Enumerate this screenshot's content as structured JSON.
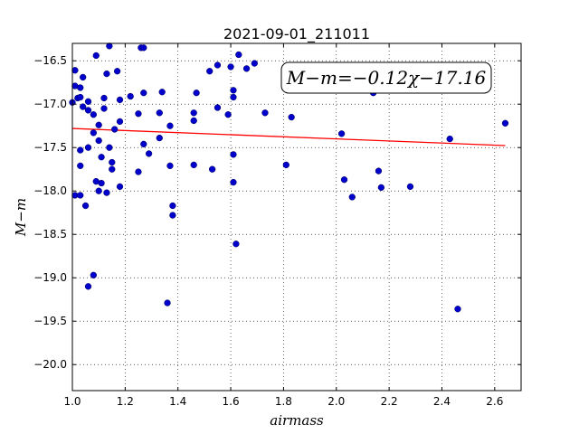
{
  "chart_data": {
    "type": "scatter",
    "title": "2021-09-01_211011",
    "xlabel": "airmass",
    "ylabel": "M−m",
    "xlim": [
      1.0,
      2.7
    ],
    "ylim": [
      -20.3,
      -16.3
    ],
    "x_ticks": [
      1.0,
      1.2,
      1.4,
      1.6,
      1.8,
      2.0,
      2.2,
      2.4,
      2.6
    ],
    "x_tick_labels": [
      "1.0",
      "1.2",
      "1.4",
      "1.6",
      "1.8",
      "2.0",
      "2.2",
      "2.4",
      "2.6"
    ],
    "y_ticks": [
      -16.5,
      -17.0,
      -17.5,
      -18.0,
      -18.5,
      -19.0,
      -19.5,
      -20.0
    ],
    "y_tick_labels": [
      "−16.5",
      "−17.0",
      "−17.5",
      "−18.0",
      "−18.5",
      "−19.0",
      "−19.5",
      "−20.0"
    ],
    "grid": true,
    "annotation": "M−m=−0.12χ−17.16",
    "fit_line": {
      "slope": -0.12,
      "intercept": -17.16,
      "x_range": [
        1.0,
        2.64
      ],
      "color": "#ff0000"
    },
    "marker_color": "#0000cc",
    "points": [
      [
        1.14,
        -16.33
      ],
      [
        1.26,
        -16.35
      ],
      [
        1.27,
        -16.35
      ],
      [
        1.09,
        -16.44
      ],
      [
        1.63,
        -16.43
      ],
      [
        1.55,
        -16.55
      ],
      [
        1.6,
        -16.57
      ],
      [
        1.66,
        -16.59
      ],
      [
        1.69,
        -16.53
      ],
      [
        1.52,
        -16.62
      ],
      [
        1.17,
        -16.62
      ],
      [
        1.13,
        -16.65
      ],
      [
        1.01,
        -16.61
      ],
      [
        1.04,
        -16.69
      ],
      [
        1.01,
        -16.79
      ],
      [
        1.03,
        -16.81
      ],
      [
        1.02,
        -16.93
      ],
      [
        1.03,
        -16.92
      ],
      [
        1.06,
        -16.97
      ],
      [
        1.0,
        -16.98
      ],
      [
        1.04,
        -17.03
      ],
      [
        1.06,
        -17.07
      ],
      [
        1.08,
        -17.12
      ],
      [
        1.1,
        -17.24
      ],
      [
        1.12,
        -16.93
      ],
      [
        1.12,
        -17.05
      ],
      [
        1.18,
        -16.95
      ],
      [
        1.22,
        -16.91
      ],
      [
        1.27,
        -16.87
      ],
      [
        1.34,
        -16.86
      ],
      [
        1.47,
        -16.87
      ],
      [
        1.61,
        -16.84
      ],
      [
        1.61,
        -16.92
      ],
      [
        1.55,
        -17.04
      ],
      [
        1.59,
        -17.12
      ],
      [
        1.46,
        -17.1
      ],
      [
        1.46,
        -17.19
      ],
      [
        1.33,
        -17.1
      ],
      [
        1.37,
        -17.25
      ],
      [
        1.25,
        -17.11
      ],
      [
        1.18,
        -17.2
      ],
      [
        1.16,
        -17.29
      ],
      [
        1.08,
        -17.33
      ],
      [
        1.1,
        -17.42
      ],
      [
        1.06,
        -17.5
      ],
      [
        1.03,
        -17.53
      ],
      [
        1.14,
        -17.5
      ],
      [
        1.11,
        -17.61
      ],
      [
        1.15,
        -17.67
      ],
      [
        1.27,
        -17.46
      ],
      [
        1.29,
        -17.57
      ],
      [
        1.33,
        -17.39
      ],
      [
        1.37,
        -17.71
      ],
      [
        1.46,
        -17.7
      ],
      [
        1.53,
        -17.75
      ],
      [
        1.15,
        -17.75
      ],
      [
        1.25,
        -17.78
      ],
      [
        1.03,
        -17.71
      ],
      [
        1.61,
        -17.58
      ],
      [
        1.61,
        -17.9
      ],
      [
        1.81,
        -17.7
      ],
      [
        1.73,
        -17.1
      ],
      [
        1.83,
        -17.15
      ],
      [
        2.14,
        -16.87
      ],
      [
        2.02,
        -17.34
      ],
      [
        2.43,
        -17.4
      ],
      [
        2.64,
        -17.22
      ],
      [
        2.16,
        -17.77
      ],
      [
        2.03,
        -17.87
      ],
      [
        2.06,
        -18.07
      ],
      [
        2.17,
        -17.96
      ],
      [
        2.28,
        -17.95
      ],
      [
        1.09,
        -17.89
      ],
      [
        1.11,
        -17.91
      ],
      [
        1.13,
        -18.02
      ],
      [
        1.1,
        -18.0
      ],
      [
        1.01,
        -18.05
      ],
      [
        1.03,
        -18.05
      ],
      [
        1.05,
        -18.17
      ],
      [
        1.18,
        -17.95
      ],
      [
        1.38,
        -18.17
      ],
      [
        1.38,
        -18.28
      ],
      [
        1.62,
        -18.61
      ],
      [
        1.08,
        -18.97
      ],
      [
        1.06,
        -19.1
      ],
      [
        1.36,
        -19.29
      ],
      [
        2.46,
        -19.36
      ]
    ]
  }
}
